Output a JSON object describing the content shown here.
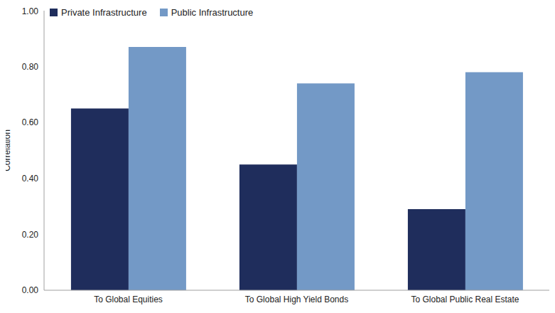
{
  "chart_data": {
    "type": "bar",
    "ylabel": "Correlation",
    "categories": [
      "To Global Equities",
      "To Global High Yield Bonds",
      "To Global Public Real Estate"
    ],
    "series": [
      {
        "name": "Private Infrastructure",
        "color": "#1f2d5c",
        "values": [
          0.65,
          0.45,
          0.29
        ]
      },
      {
        "name": "Public Infrastructure",
        "color": "#7399c6",
        "values": [
          0.87,
          0.74,
          0.78
        ]
      }
    ],
    "ylim": [
      0,
      1
    ],
    "yticks": [
      {
        "value": 0,
        "label": "0.00"
      },
      {
        "value": 0.2,
        "label": "0.20"
      },
      {
        "value": 0.4,
        "label": "0.40"
      },
      {
        "value": 0.6,
        "label": "0.60"
      },
      {
        "value": 0.8,
        "label": "0.80"
      },
      {
        "value": 1,
        "label": "1.00"
      }
    ],
    "legend": "upper left",
    "grid": false
  }
}
